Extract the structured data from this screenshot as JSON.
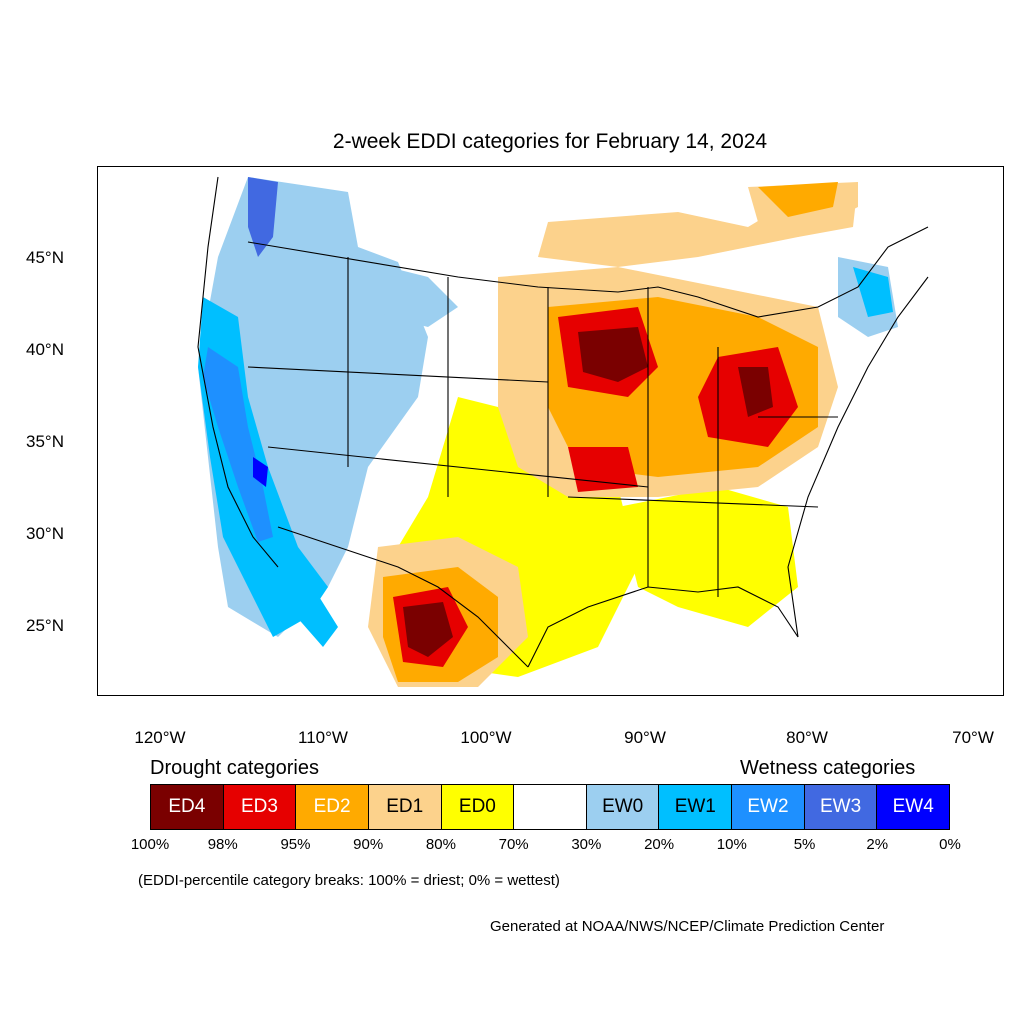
{
  "title": "2-week EDDI categories for February 14, 2024",
  "lat_labels": [
    "45°N",
    "40°N",
    "35°N",
    "30°N",
    "25°N"
  ],
  "lon_labels": [
    "120°W",
    "110°W",
    "100°W",
    "90°W",
    "80°W",
    "70°W"
  ],
  "legend": {
    "drought_heading": "Drought categories",
    "wetness_heading": "Wetness categories",
    "categories": [
      {
        "label": "ED4",
        "color": "#7a0000",
        "text_color": "#ffffff"
      },
      {
        "label": "ED3",
        "color": "#e60000",
        "text_color": "#ffffff"
      },
      {
        "label": "ED2",
        "color": "#ffaa00",
        "text_color": "#ffffff"
      },
      {
        "label": "ED1",
        "color": "#fcd28c",
        "text_color": "#000000"
      },
      {
        "label": "ED0",
        "color": "#ffff00",
        "text_color": "#000000"
      },
      {
        "label": "",
        "color": "#ffffff",
        "text_color": "#000000"
      },
      {
        "label": "EW0",
        "color": "#9ccff0",
        "text_color": "#000000"
      },
      {
        "label": "EW1",
        "color": "#00bfff",
        "text_color": "#000000"
      },
      {
        "label": "EW2",
        "color": "#1e90ff",
        "text_color": "#ffffff"
      },
      {
        "label": "EW3",
        "color": "#4169e1",
        "text_color": "#ffffff"
      },
      {
        "label": "EW4",
        "color": "#0000ff",
        "text_color": "#ffffff"
      }
    ],
    "percentiles": [
      "100%",
      "98%",
      "95%",
      "90%",
      "80%",
      "70%",
      "30%",
      "20%",
      "10%",
      "5%",
      "2%",
      "0%"
    ]
  },
  "breaks_note": "(EDDI-percentile category breaks: 100% = driest; 0% = wettest)",
  "credit": "Generated at NOAA/NWS/NCEP/Climate Prediction Center"
}
